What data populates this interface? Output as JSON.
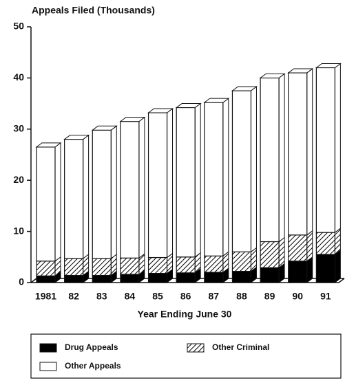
{
  "chart_data": {
    "type": "stacked-bar-3d",
    "title": "Appeals Filed (Thousands)",
    "x_label": "Year Ending June 30",
    "categories": [
      "1981",
      "82",
      "83",
      "84",
      "85",
      "86",
      "87",
      "88",
      "89",
      "90",
      "91"
    ],
    "series": [
      {
        "name": "Drug Appeals",
        "color": "#000000",
        "values": [
          1.3,
          1.4,
          1.4,
          1.6,
          1.8,
          1.9,
          2.0,
          2.2,
          2.9,
          4.2,
          5.5
        ]
      },
      {
        "name": "Other Criminal",
        "color": "#000000",
        "pattern": "hatch",
        "values": [
          2.9,
          3.3,
          3.3,
          3.2,
          3.1,
          3.1,
          3.2,
          3.8,
          5.1,
          5.1,
          4.3
        ]
      },
      {
        "name": "Other Appeals",
        "color": "#ffffff",
        "values": [
          22.3,
          23.3,
          25.1,
          26.7,
          28.3,
          29.2,
          30.0,
          31.5,
          32.0,
          31.7,
          32.2
        ]
      }
    ],
    "ylim": [
      0,
      50
    ],
    "yticks": [
      0,
      10,
      20,
      30,
      40,
      50
    ],
    "grid": false
  }
}
